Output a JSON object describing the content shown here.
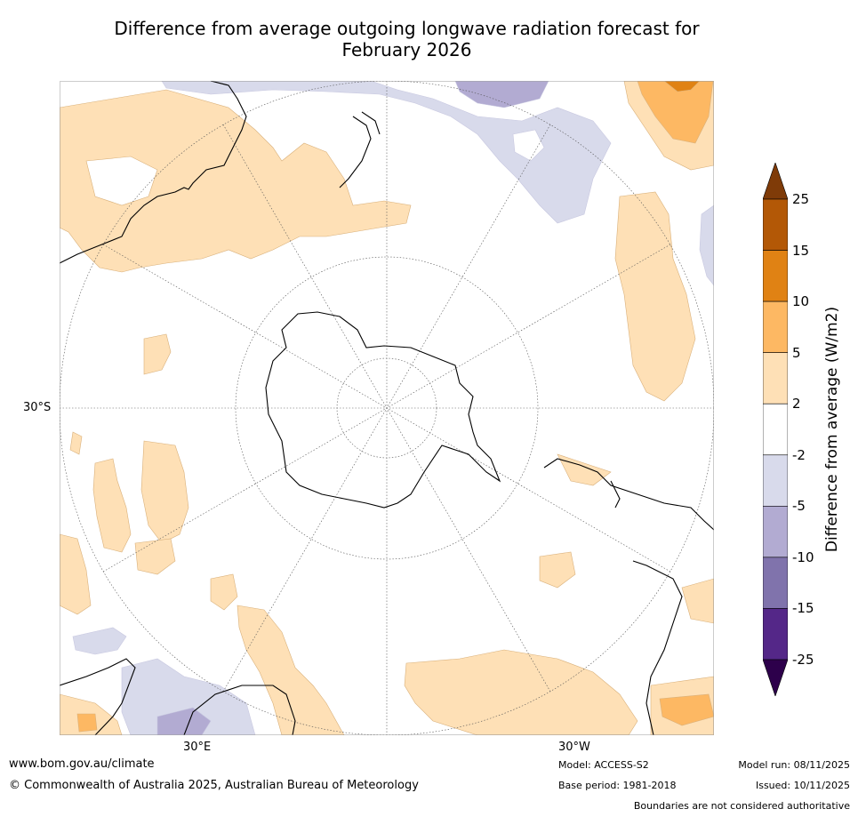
{
  "title_line1": "Difference from average outgoing longwave radiation forecast for",
  "title_line2": "February 2026",
  "map": {
    "projection": "south-polar-stereographic",
    "lat_label": "30°S",
    "lon_labels": {
      "east": "30°E",
      "west": "30°W"
    }
  },
  "colorbar": {
    "label": "Difference from average (W/m2)",
    "ticks": [
      "25",
      "15",
      "10",
      "5",
      "2",
      "-2",
      "-5",
      "-10",
      "-15",
      "-25"
    ],
    "bins": [
      {
        "range": "> 25",
        "color": "#7f3b08"
      },
      {
        "range": "15 to 25",
        "color": "#b35806"
      },
      {
        "range": "10 to 15",
        "color": "#e08214"
      },
      {
        "range": "5 to 10",
        "color": "#fdb863"
      },
      {
        "range": "2 to 5",
        "color": "#fee0b6"
      },
      {
        "range": "-2 to 2",
        "color": "#ffffff"
      },
      {
        "range": "-5 to -2",
        "color": "#d8daeb"
      },
      {
        "range": "-10 to -5",
        "color": "#b2abd2"
      },
      {
        "range": "-15 to -10",
        "color": "#8073ac"
      },
      {
        "range": "-25 to -15",
        "color": "#542788"
      },
      {
        "range": "< -25",
        "color": "#2d004b"
      }
    ]
  },
  "footer": {
    "url": "www.bom.gov.au/climate",
    "copyright": "© Commonwealth of Australia 2025, Australian Bureau of Meteorology",
    "model": "Model: ACCESS-S2",
    "base_period": "Base period: 1981-2018",
    "model_run": "Model run: 08/11/2025",
    "issued": "Issued: 10/11/2025",
    "disclaimer": "Boundaries are not considered authoritative"
  }
}
